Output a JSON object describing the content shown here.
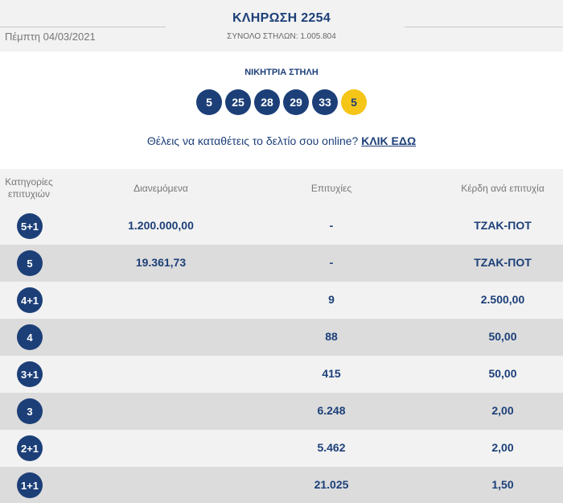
{
  "header": {
    "date": "Πέμπτη 04/03/2021",
    "draw_title": "ΚΛΗΡΩΣΗ 2254",
    "total_columns": "ΣΥΝΟΛΟ ΣΤΗΛΩΝ: 1.005.804"
  },
  "winning": {
    "label": "ΝΙΚΗΤΡΙΑ ΣΤΗΛΗ",
    "numbers": [
      "5",
      "25",
      "28",
      "29",
      "33"
    ],
    "joker": "5"
  },
  "online": {
    "text": "Θέλεις να καταθέτεις το δελτίο σου online?",
    "link": "ΚΛΙΚ ΕΔΩ"
  },
  "table": {
    "headers": {
      "category_line1": "Κατηγορίες",
      "category_line2": "επιτυχιών",
      "distributed": "Διανεμόμενα",
      "winners": "Επιτυχίες",
      "prize": "Κέρδη ανά επιτυχία"
    },
    "rows": [
      {
        "category": "5+1",
        "distributed": "1.200.000,00",
        "winners": "-",
        "prize": "ΤΖΑΚ-ΠΟΤ"
      },
      {
        "category": "5",
        "distributed": "19.361,73",
        "winners": "-",
        "prize": "ΤΖΑΚ-ΠΟΤ"
      },
      {
        "category": "4+1",
        "distributed": "",
        "winners": "9",
        "prize": "2.500,00"
      },
      {
        "category": "4",
        "distributed": "",
        "winners": "88",
        "prize": "50,00"
      },
      {
        "category": "3+1",
        "distributed": "",
        "winners": "415",
        "prize": "50,00"
      },
      {
        "category": "3",
        "distributed": "",
        "winners": "6.248",
        "prize": "2,00"
      },
      {
        "category": "2+1",
        "distributed": "",
        "winners": "5.462",
        "prize": "2,00"
      },
      {
        "category": "1+1",
        "distributed": "",
        "winners": "21.025",
        "prize": "1,50"
      }
    ]
  },
  "colors": {
    "brand_blue": "#1c3f78",
    "joker_yellow": "#f5c518"
  }
}
